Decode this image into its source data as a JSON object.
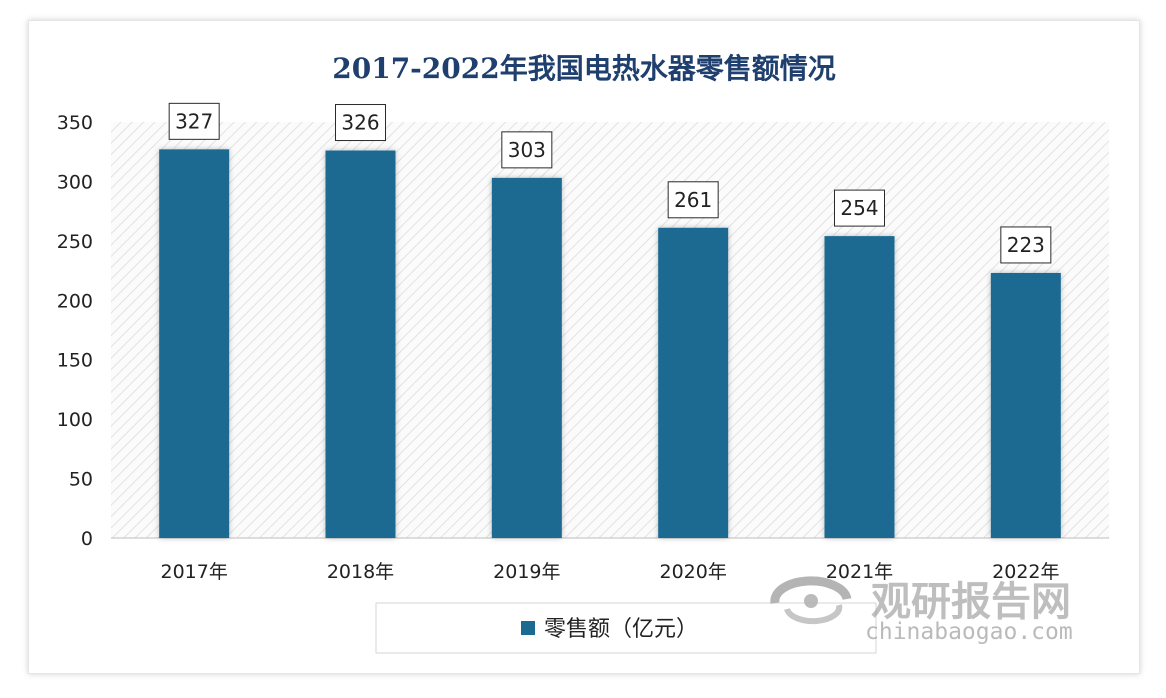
{
  "chart_data": {
    "type": "bar",
    "title": "2017-2022年我国电热水器零售额情况",
    "categories": [
      "2017年",
      "2018年",
      "2019年",
      "2020年",
      "2021年",
      "2022年"
    ],
    "series": [
      {
        "name": "零售额（亿元）",
        "values": [
          327,
          326,
          303,
          261,
          254,
          223
        ]
      }
    ],
    "data_labels": [
      "327",
      "326",
      "303",
      "261",
      "254",
      "223"
    ],
    "yticks": [
      "0",
      "50",
      "100",
      "150",
      "200",
      "250",
      "300",
      "350"
    ],
    "ylim": [
      0,
      350
    ],
    "grid": false,
    "legend_position": "bottom",
    "bar_color": "#1a6a92"
  },
  "watermark": {
    "name": "观研报告网",
    "url": "chinabaogao.com",
    "logo": "swirl-logo"
  }
}
